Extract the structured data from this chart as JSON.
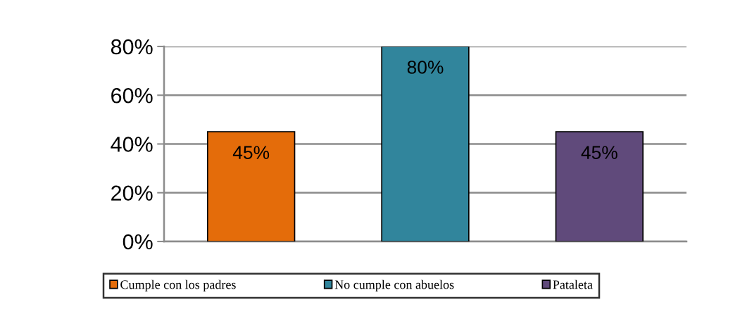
{
  "chart_data": {
    "type": "bar",
    "categories": [
      null,
      null,
      null
    ],
    "series": [
      {
        "name": "Cumple con los padres",
        "color": "#e46c0a",
        "values": [
          45,
          null,
          null
        ],
        "value_labels": [
          "45%",
          null,
          null
        ]
      },
      {
        "name": "No cumple con abuelos",
        "color": "#31859c",
        "values": [
          null,
          80,
          null
        ],
        "value_labels": [
          null,
          "80%",
          null
        ]
      },
      {
        "name": "Pataleta",
        "color": "#604a7b",
        "values": [
          null,
          null,
          45
        ],
        "value_labels": [
          null,
          null,
          "45%"
        ]
      }
    ],
    "ylim": [
      0,
      80
    ],
    "yticks": [
      {
        "value": 0,
        "label": "0%"
      },
      {
        "value": 20,
        "label": "20%"
      },
      {
        "value": 40,
        "label": "40%"
      },
      {
        "value": 60,
        "label": "60%"
      },
      {
        "value": 80,
        "label": "80%"
      }
    ],
    "grid": "y",
    "legend": "bottom"
  }
}
